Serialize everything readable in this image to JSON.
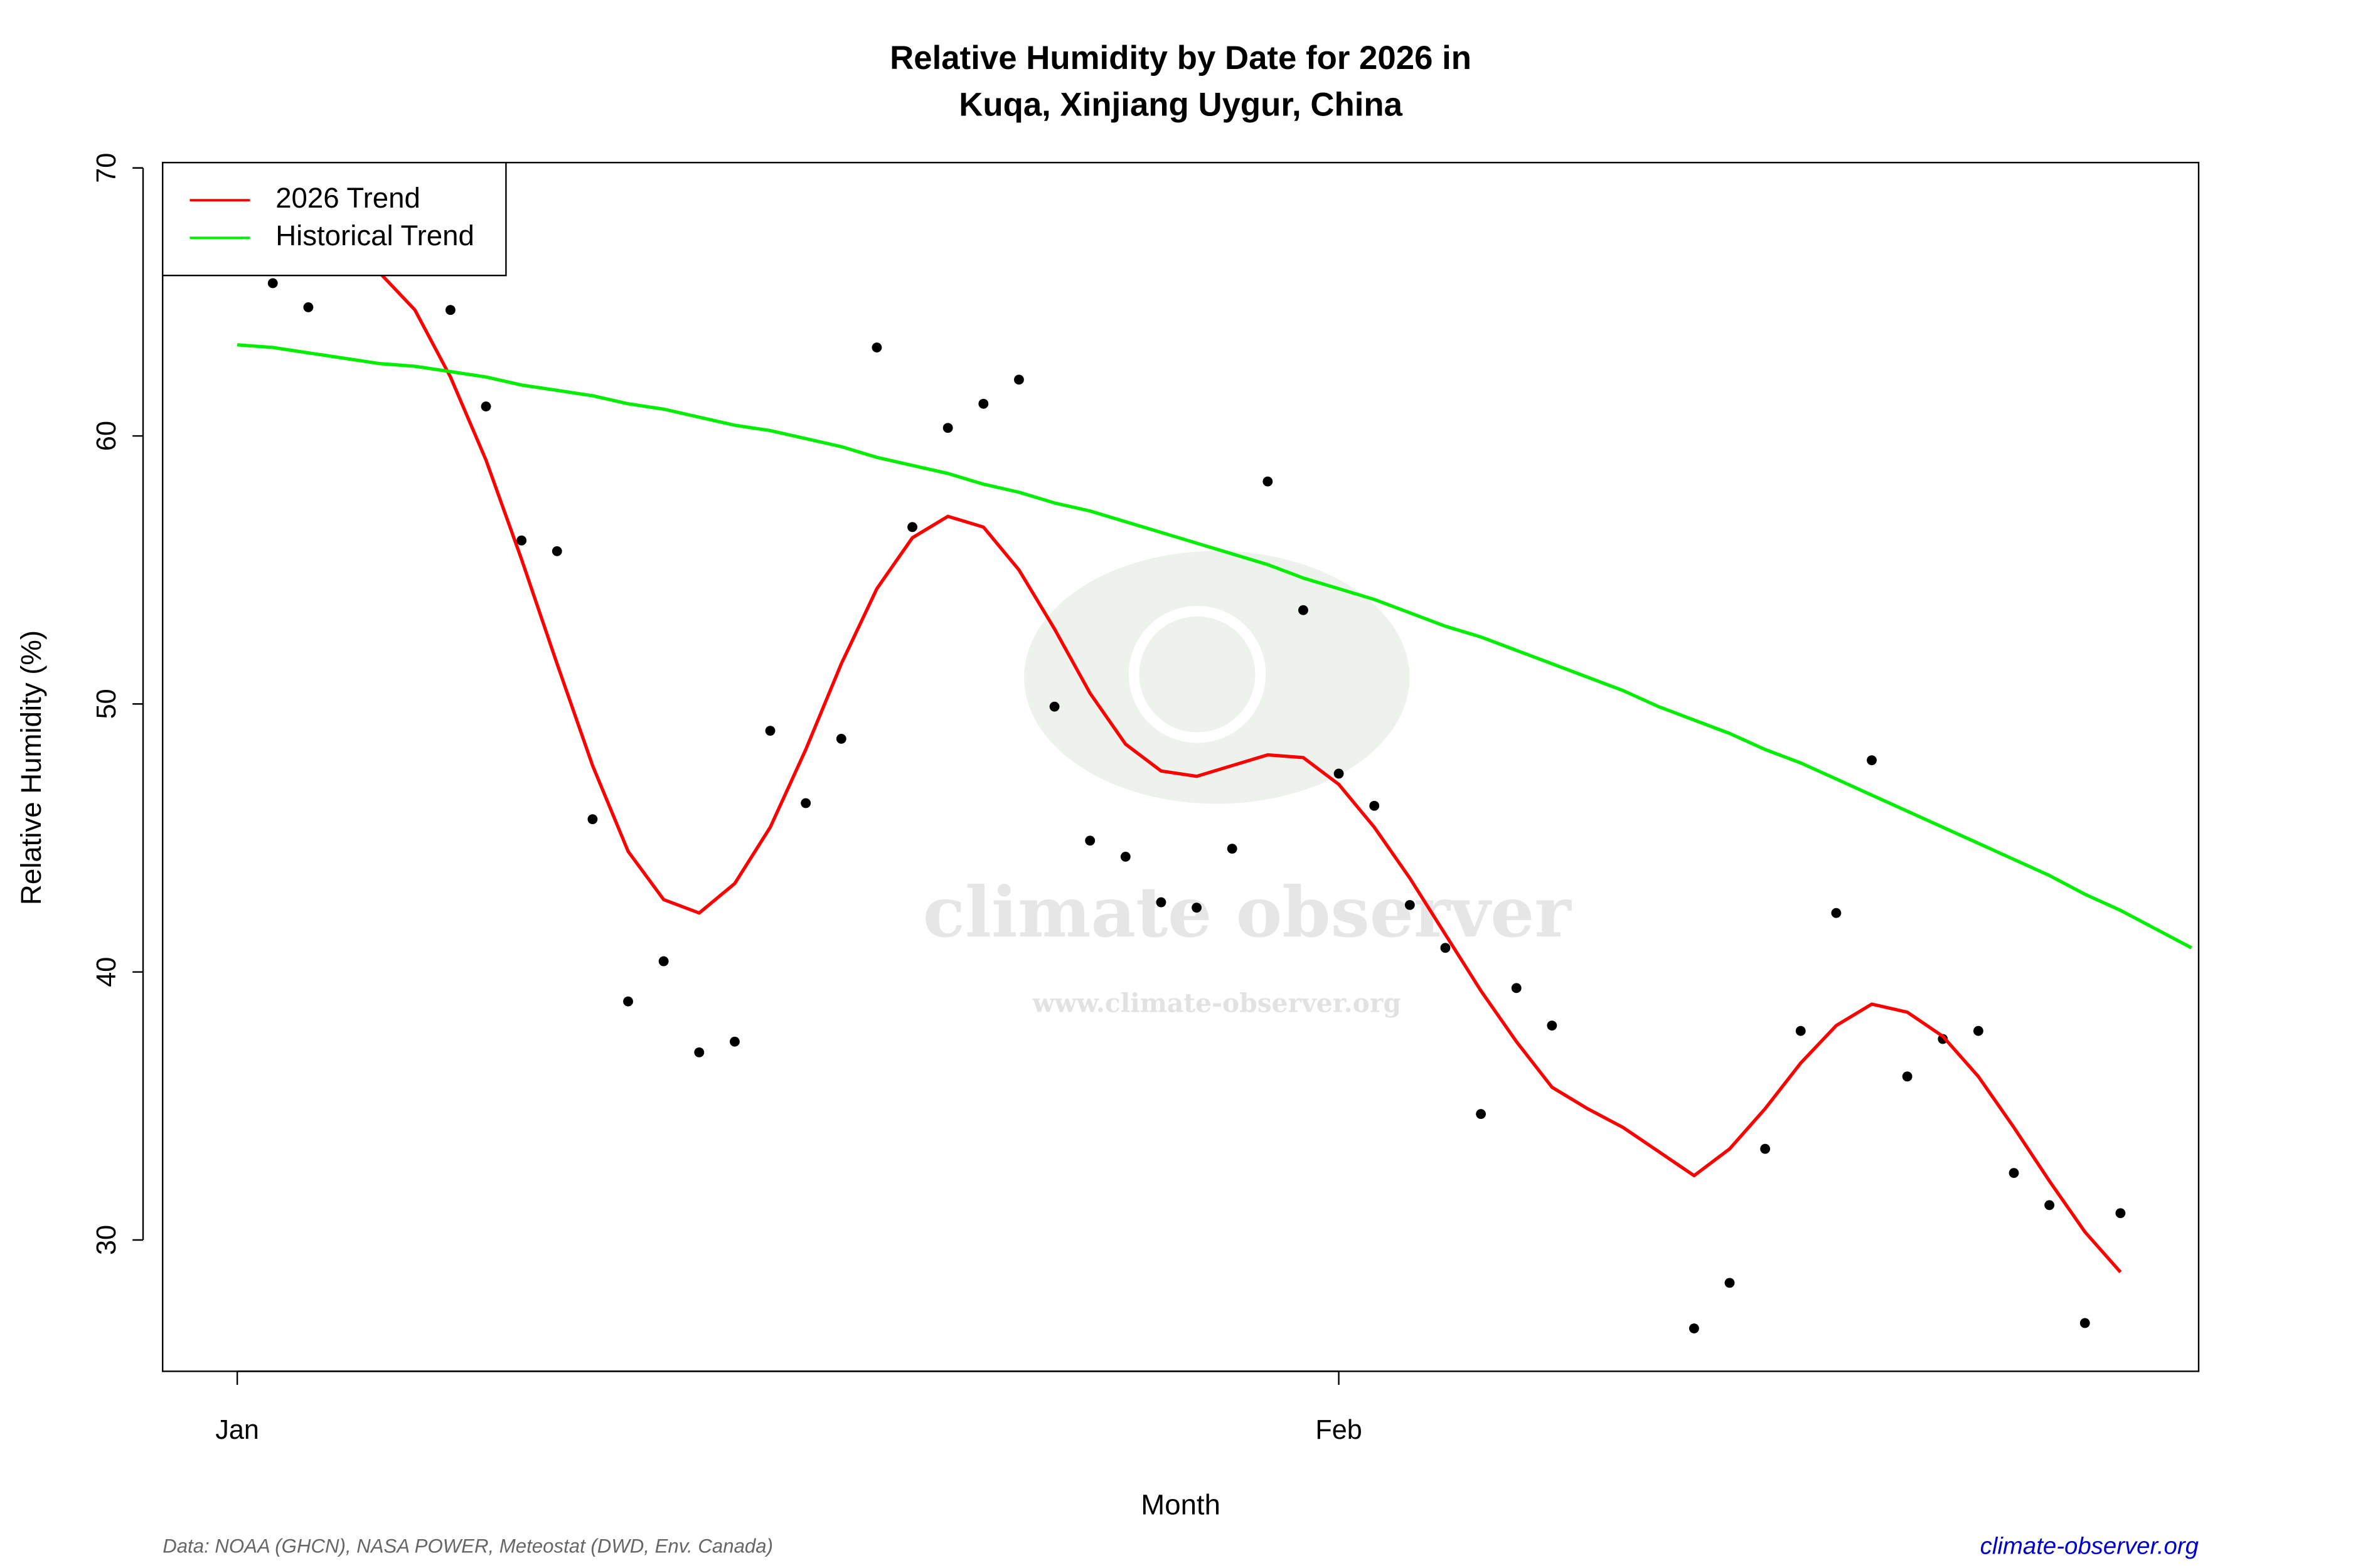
{
  "chart_data": {
    "type": "line",
    "title": [
      "Relative Humidity by Date for 2026 in",
      "Kuqa, Xinjiang Uygur, China"
    ],
    "x_label": "Month",
    "y_label": "Relative Humidity (%)",
    "watermark": [
      "climate observer",
      "www.climate-observer.org"
    ],
    "source": "Data: NOAA (GHCN), NASA POWER, Meteostat (DWD, Env. Canada)",
    "site": "climate-observer.org",
    "legend": "topleft",
    "xlim": [
      -2.1,
      55.2
    ],
    "xticks": [
      {
        "value": 0,
        "label": "Jan"
      },
      {
        "value": 31,
        "label": "Feb"
      }
    ],
    "ylim": [
      25.1,
      70.2
    ],
    "yticks": [
      30,
      40,
      50,
      60,
      70
    ],
    "x": [
      0,
      1,
      2,
      3,
      4,
      5,
      6,
      7,
      8,
      9,
      10,
      11,
      12,
      13,
      14,
      15,
      16,
      17,
      18,
      19,
      20,
      21,
      22,
      23,
      24,
      25,
      26,
      27,
      28,
      29,
      30,
      31,
      32,
      33,
      34,
      35,
      36,
      37,
      38,
      39,
      40,
      41,
      42,
      43,
      44,
      45,
      46,
      47,
      48,
      49,
      50,
      51,
      52,
      53,
      54,
      55
    ],
    "series": [
      {
        "style": "points",
        "color": "#000000",
        "values": [
          null,
          65.7,
          64.8,
          null,
          null,
          null,
          64.7,
          61.1,
          56.1,
          55.7,
          45.7,
          38.9,
          40.4,
          37.0,
          37.4,
          49.0,
          46.3,
          48.7,
          63.3,
          56.6,
          60.3,
          61.2,
          62.1,
          49.9,
          44.9,
          44.3,
          42.6,
          42.4,
          44.6,
          58.3,
          53.5,
          47.4,
          46.2,
          42.5,
          40.9,
          34.7,
          39.4,
          38.0,
          null,
          null,
          null,
          26.7,
          28.4,
          33.4,
          37.8,
          42.2,
          47.9,
          36.1,
          37.5,
          37.8,
          32.5,
          31.3,
          26.9,
          31.0,
          null,
          null
        ]
      },
      {
        "name": "2026 Trend",
        "style": "line",
        "color": "#ff0000",
        "values": [
          null,
          null,
          null,
          null,
          66.1,
          64.7,
          62.2,
          59.1,
          55.4,
          51.5,
          47.7,
          44.5,
          42.7,
          42.2,
          43.3,
          45.4,
          48.3,
          51.5,
          54.3,
          56.2,
          57.0,
          56.6,
          55.0,
          52.8,
          50.4,
          48.5,
          47.5,
          47.3,
          47.7,
          48.1,
          48.0,
          47.0,
          45.4,
          43.5,
          41.4,
          39.3,
          37.4,
          35.7,
          34.9,
          34.2,
          33.3,
          32.4,
          33.4,
          34.9,
          36.6,
          38.0,
          38.8,
          38.5,
          37.6,
          36.1,
          34.2,
          32.2,
          30.3,
          28.8,
          null,
          null
        ]
      },
      {
        "name": "Historical Trend",
        "style": "line",
        "color": "#00ee00",
        "values": [
          63.4,
          63.3,
          63.1,
          62.9,
          62.7,
          62.6,
          62.4,
          62.2,
          61.9,
          61.7,
          61.5,
          61.2,
          61.0,
          60.7,
          60.4,
          60.2,
          59.9,
          59.6,
          59.2,
          58.9,
          58.6,
          58.2,
          57.9,
          57.5,
          57.2,
          56.8,
          56.4,
          56.0,
          55.6,
          55.2,
          54.7,
          54.3,
          53.9,
          53.4,
          52.9,
          52.5,
          52.0,
          51.5,
          51.0,
          50.5,
          49.9,
          49.4,
          48.9,
          48.3,
          47.8,
          47.2,
          46.6,
          46.0,
          45.4,
          44.8,
          44.2,
          43.6,
          42.9,
          42.3,
          41.6,
          40.9
        ]
      }
    ]
  }
}
